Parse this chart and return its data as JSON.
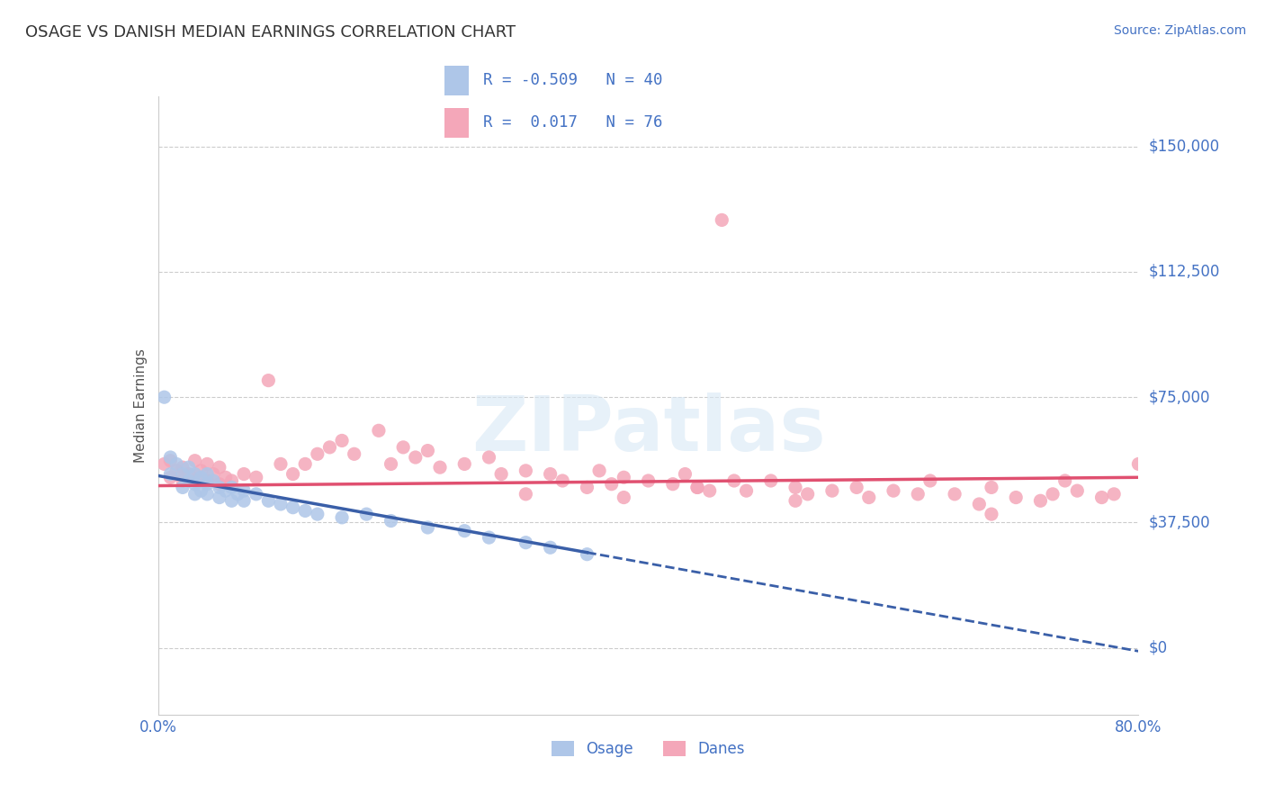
{
  "title": "OSAGE VS DANISH MEDIAN EARNINGS CORRELATION CHART",
  "source_text": "Source: ZipAtlas.com",
  "ylabel": "Median Earnings",
  "xlim": [
    0.0,
    0.8
  ],
  "ylim": [
    -20000,
    165000
  ],
  "yticks": [
    0,
    37500,
    75000,
    112500,
    150000
  ],
  "ytick_labels": [
    "$0",
    "$37,500",
    "$75,000",
    "$112,500",
    "$150,000"
  ],
  "xticks": [
    0.0,
    0.1,
    0.2,
    0.3,
    0.4,
    0.5,
    0.6,
    0.7,
    0.8
  ],
  "xtick_labels": [
    "0.0%",
    "",
    "",
    "",
    "",
    "",
    "",
    "",
    "80.0%"
  ],
  "background_color": "#ffffff",
  "grid_color": "#cccccc",
  "title_color": "#333333",
  "axis_label_color": "#4472c4",
  "watermark_text": "ZIPatlas",
  "legend_R1": "-0.509",
  "legend_N1": "40",
  "legend_R2": "0.017",
  "legend_N2": "76",
  "legend_label1": "Osage",
  "legend_label2": "Danes",
  "osage_color": "#aec6e8",
  "danes_color": "#f4a7b9",
  "osage_line_color": "#3a5fa8",
  "danes_line_color": "#e05070",
  "osage_scatter_x": [
    0.005,
    0.01,
    0.01,
    0.015,
    0.02,
    0.02,
    0.025,
    0.025,
    0.03,
    0.03,
    0.03,
    0.035,
    0.035,
    0.04,
    0.04,
    0.04,
    0.045,
    0.05,
    0.05,
    0.055,
    0.06,
    0.06,
    0.065,
    0.07,
    0.07,
    0.08,
    0.09,
    0.1,
    0.11,
    0.12,
    0.13,
    0.15,
    0.17,
    0.19,
    0.22,
    0.25,
    0.27,
    0.3,
    0.32,
    0.35
  ],
  "osage_scatter_y": [
    75000,
    57000,
    52000,
    55000,
    52000,
    48000,
    54000,
    50000,
    52000,
    49000,
    46000,
    51000,
    47000,
    52000,
    49000,
    46000,
    50000,
    48000,
    45000,
    47000,
    48000,
    44000,
    46000,
    47000,
    44000,
    46000,
    44000,
    43000,
    42000,
    41000,
    40000,
    39000,
    40000,
    38000,
    36000,
    35000,
    33000,
    31500,
    30000,
    28000
  ],
  "danes_scatter_x": [
    0.005,
    0.01,
    0.01,
    0.015,
    0.02,
    0.02,
    0.025,
    0.03,
    0.03,
    0.035,
    0.04,
    0.04,
    0.045,
    0.05,
    0.05,
    0.055,
    0.06,
    0.07,
    0.08,
    0.09,
    0.1,
    0.11,
    0.12,
    0.13,
    0.14,
    0.15,
    0.16,
    0.18,
    0.19,
    0.2,
    0.21,
    0.22,
    0.23,
    0.25,
    0.27,
    0.28,
    0.3,
    0.32,
    0.33,
    0.35,
    0.36,
    0.37,
    0.38,
    0.4,
    0.42,
    0.43,
    0.44,
    0.45,
    0.47,
    0.48,
    0.5,
    0.52,
    0.53,
    0.55,
    0.57,
    0.58,
    0.6,
    0.62,
    0.63,
    0.65,
    0.67,
    0.68,
    0.7,
    0.72,
    0.73,
    0.74,
    0.75,
    0.77,
    0.78,
    0.8,
    0.46,
    0.38,
    0.52,
    0.44,
    0.3,
    0.68
  ],
  "danes_scatter_y": [
    55000,
    56000,
    51000,
    53000,
    54000,
    50000,
    52000,
    56000,
    50000,
    53000,
    55000,
    50000,
    52000,
    54000,
    49000,
    51000,
    50000,
    52000,
    51000,
    80000,
    55000,
    52000,
    55000,
    58000,
    60000,
    62000,
    58000,
    65000,
    55000,
    60000,
    57000,
    59000,
    54000,
    55000,
    57000,
    52000,
    53000,
    52000,
    50000,
    48000,
    53000,
    49000,
    51000,
    50000,
    49000,
    52000,
    48000,
    47000,
    50000,
    47000,
    50000,
    48000,
    46000,
    47000,
    48000,
    45000,
    47000,
    46000,
    50000,
    46000,
    43000,
    48000,
    45000,
    44000,
    46000,
    50000,
    47000,
    45000,
    46000,
    55000,
    128000,
    45000,
    44000,
    48000,
    46000,
    40000
  ]
}
